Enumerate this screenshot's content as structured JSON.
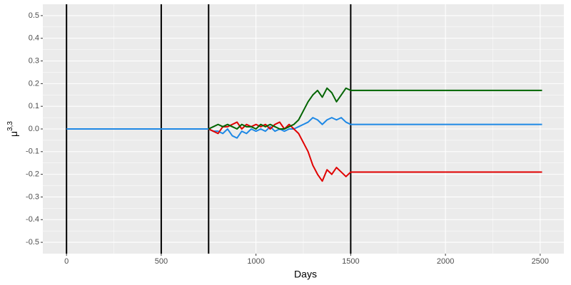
{
  "chart_data": {
    "type": "line",
    "xlabel": "Days",
    "ylabel": "μ",
    "ylabel_sup": "3,3",
    "xlim": [
      -125,
      2625
    ],
    "ylim": [
      -0.55,
      0.55
    ],
    "xticks": [
      0,
      500,
      1000,
      1500,
      2000,
      2500
    ],
    "yticks": [
      0.5,
      0.4,
      0.3,
      0.2,
      0.1,
      {
        "value": 0,
        "label": "0.0"
      },
      -0.1,
      -0.2,
      -0.3,
      -0.4,
      -0.5
    ],
    "grid": true,
    "background": "#EBEBEB",
    "vlines": [
      0,
      500,
      750,
      1500
    ],
    "vline_color": "#000000",
    "series": [
      {
        "color": "#1E88E5",
        "x": [
          0,
          750,
          775,
          800,
          825,
          850,
          875,
          900,
          925,
          950,
          975,
          1000,
          1025,
          1050,
          1075,
          1100,
          1125,
          1150,
          1175,
          1200,
          1225,
          1250,
          1275,
          1300,
          1325,
          1350,
          1375,
          1400,
          1425,
          1450,
          1475,
          1500,
          2510
        ],
        "values": [
          0,
          0,
          -0.01,
          -0.01,
          -0.02,
          0.0,
          -0.03,
          -0.04,
          -0.01,
          -0.02,
          0.0,
          -0.01,
          0.0,
          -0.01,
          0.01,
          -0.01,
          0.0,
          -0.01,
          0.0,
          0.0,
          0.01,
          0.02,
          0.03,
          0.05,
          0.04,
          0.02,
          0.04,
          0.05,
          0.04,
          0.05,
          0.03,
          0.02,
          0.02
        ]
      },
      {
        "color": "#E00000",
        "x": [
          750,
          775,
          800,
          825,
          850,
          875,
          900,
          925,
          950,
          975,
          1000,
          1025,
          1050,
          1075,
          1100,
          1125,
          1150,
          1175,
          1200,
          1225,
          1250,
          1275,
          1300,
          1325,
          1350,
          1375,
          1400,
          1425,
          1450,
          1475,
          1500,
          2510
        ],
        "values": [
          0,
          -0.01,
          -0.02,
          0.01,
          0.01,
          0.02,
          0.03,
          0.0,
          0.02,
          0.01,
          0.02,
          0.01,
          0.02,
          0.0,
          0.02,
          0.03,
          0.0,
          0.02,
          0.0,
          -0.02,
          -0.06,
          -0.1,
          -0.16,
          -0.2,
          -0.23,
          -0.18,
          -0.2,
          -0.17,
          -0.19,
          -0.21,
          -0.19,
          -0.19
        ]
      },
      {
        "color": "#006400",
        "x": [
          750,
          775,
          800,
          825,
          850,
          875,
          900,
          925,
          950,
          975,
          1000,
          1025,
          1050,
          1075,
          1100,
          1125,
          1150,
          1175,
          1200,
          1225,
          1250,
          1275,
          1300,
          1325,
          1350,
          1375,
          1400,
          1425,
          1450,
          1475,
          1500,
          2510
        ],
        "values": [
          0,
          0.01,
          0.02,
          0.01,
          0.02,
          0.01,
          0.0,
          0.02,
          0.01,
          0.01,
          0.0,
          0.02,
          0.01,
          0.02,
          0.01,
          0.0,
          0.0,
          0.01,
          0.02,
          0.04,
          0.08,
          0.12,
          0.15,
          0.17,
          0.14,
          0.18,
          0.16,
          0.12,
          0.15,
          0.18,
          0.17,
          0.17
        ]
      }
    ]
  }
}
